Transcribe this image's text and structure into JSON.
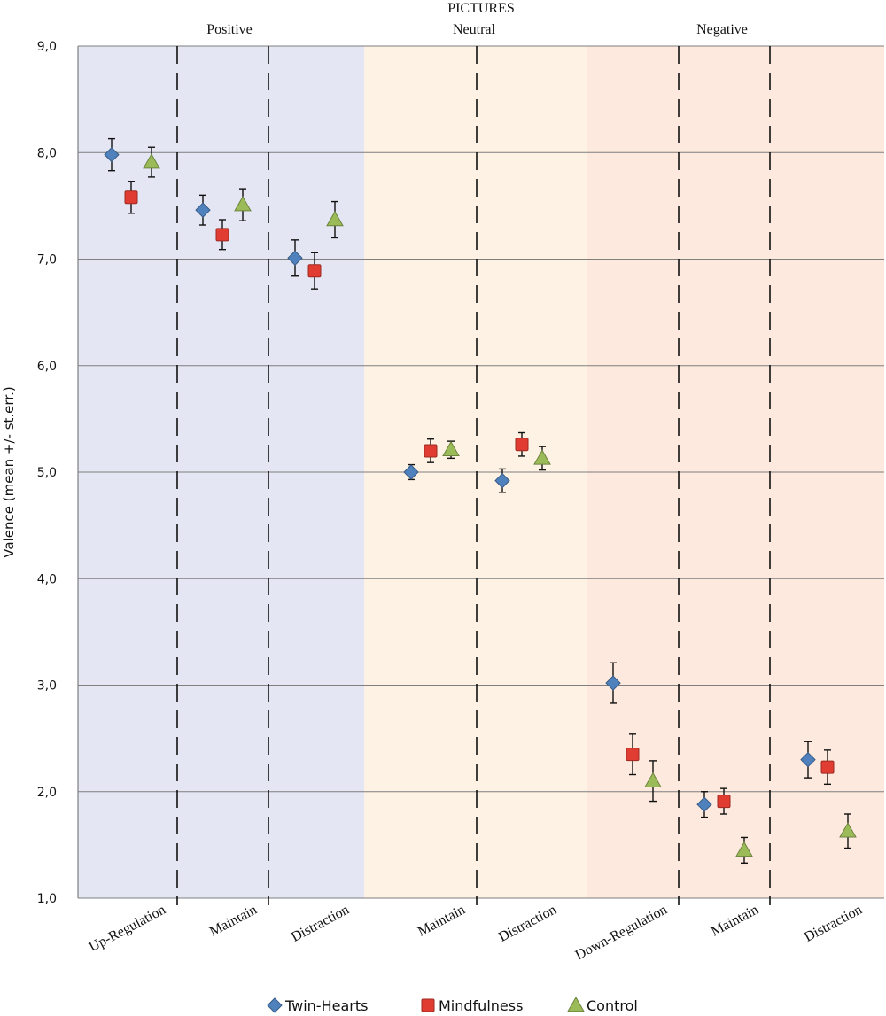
{
  "chart_data": {
    "type": "scatter",
    "title": "PICTURES",
    "ylabel": "Valence (mean +/- st.err.)",
    "ylim": [
      1,
      9
    ],
    "yticks": [
      "1,0",
      "2,0",
      "3,0",
      "4,0",
      "5,0",
      "6,0",
      "7,0",
      "8,0",
      "9,0"
    ],
    "grid": true,
    "legend_position": "bottom-center",
    "groups": [
      {
        "name": "Positive",
        "color": "#e4e7f3",
        "categories": [
          "Up-Regulation",
          "Maintain",
          "Distraction"
        ]
      },
      {
        "name": "Neutral",
        "color": "#fdf2e3",
        "categories": [
          "Maintain",
          "Distraction"
        ]
      },
      {
        "name": "Negative",
        "color": "#fde9dd",
        "categories": [
          "Down-Regulation",
          "Maintain",
          "Distraction"
        ]
      }
    ],
    "categories": [
      "Up-Regulation",
      "Maintain",
      "Distraction",
      "Maintain",
      "Distraction",
      "Down-Regulation",
      "Maintain",
      "Distraction"
    ],
    "series": [
      {
        "name": "Twin-Hearts",
        "marker": "diamond",
        "color": "#4f81bd",
        "values": [
          7.98,
          7.46,
          7.01,
          5.0,
          4.92,
          3.02,
          1.88,
          2.3
        ],
        "errors": [
          0.15,
          0.14,
          0.17,
          0.07,
          0.11,
          0.19,
          0.12,
          0.17
        ]
      },
      {
        "name": "Mindfulness",
        "marker": "square",
        "color": "#e03c31",
        "values": [
          7.58,
          7.23,
          6.89,
          5.2,
          5.26,
          2.35,
          1.91,
          2.23
        ],
        "errors": [
          0.15,
          0.14,
          0.17,
          0.11,
          0.11,
          0.19,
          0.12,
          0.16
        ]
      },
      {
        "name": "Control",
        "marker": "triangle",
        "color": "#9bbb59",
        "values": [
          7.91,
          7.51,
          7.37,
          5.21,
          5.13,
          2.1,
          1.45,
          1.63
        ],
        "errors": [
          0.14,
          0.15,
          0.17,
          0.08,
          0.11,
          0.19,
          0.12,
          0.16
        ]
      }
    ]
  }
}
